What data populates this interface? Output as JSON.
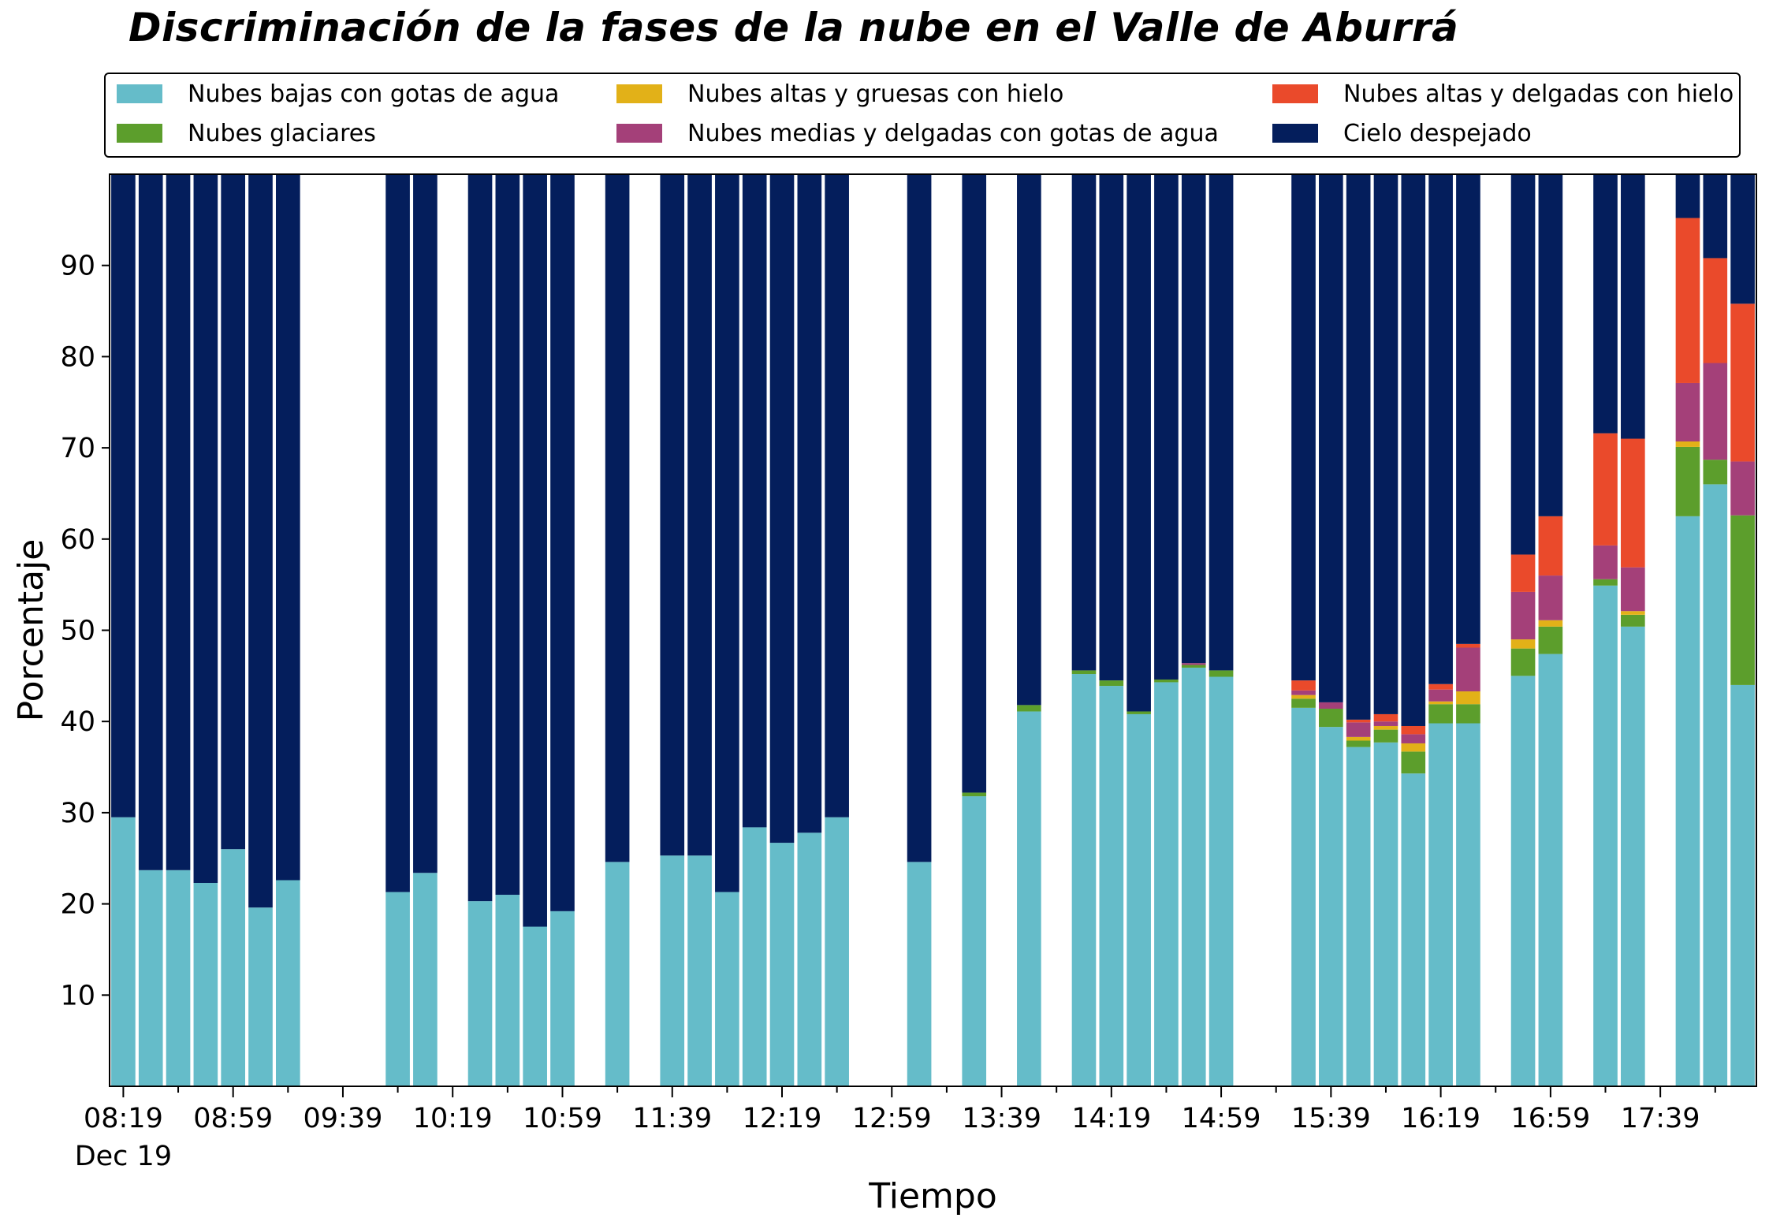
{
  "colors": {
    "low_water": "#65BCC9",
    "glacial": "#5C9E2C",
    "high_thick_ice": "#E2B118",
    "mid_thin_water": "#A44079",
    "high_thin_ice": "#EA4A2B",
    "clear_sky": "#041E5C"
  },
  "chart_data": {
    "type": "bar",
    "stacked": true,
    "title": "Discriminación de la fases de la nube en el Valle de Aburrá",
    "xlabel": "Tiempo",
    "ylabel": "Porcentaje",
    "ylim": [
      0,
      100
    ],
    "yticks": [
      10,
      20,
      30,
      40,
      50,
      60,
      70,
      80,
      90
    ],
    "x_interval_minutes": 10,
    "x_start": "08:19",
    "x_slots": 60,
    "xtick_labels": [
      "08:19",
      "08:59",
      "09:39",
      "10:19",
      "10:59",
      "11:39",
      "12:19",
      "12:59",
      "13:39",
      "14:19",
      "14:59",
      "15:39",
      "16:19",
      "16:59",
      "17:39"
    ],
    "xtick_date_label": "Dec 19",
    "grid": false,
    "legend_position": "top",
    "times": [
      "08:19",
      "08:29",
      "08:39",
      "08:49",
      "08:59",
      "09:09",
      "09:19",
      "09:59",
      "10:09",
      "10:29",
      "10:39",
      "10:49",
      "10:59",
      "11:19",
      "11:39",
      "11:49",
      "11:59",
      "12:09",
      "12:19",
      "12:29",
      "12:39",
      "13:09",
      "13:29",
      "13:49",
      "14:09",
      "14:19",
      "14:29",
      "14:39",
      "14:49",
      "14:59",
      "15:29",
      "15:39",
      "15:49",
      "15:59",
      "16:09",
      "16:19",
      "16:29",
      "16:49",
      "16:59",
      "17:19",
      "17:29",
      "17:49",
      "17:59",
      "18:09"
    ],
    "series": [
      {
        "name": "Nubes bajas con gotas de agua",
        "color_key": "low_water",
        "values": [
          29.5,
          23.7,
          23.7,
          22.3,
          26.0,
          19.6,
          22.6,
          21.3,
          23.4,
          20.3,
          21.0,
          17.5,
          19.2,
          24.6,
          25.3,
          25.3,
          21.3,
          28.4,
          26.7,
          27.8,
          29.5,
          24.6,
          31.8,
          41.1,
          45.2,
          43.9,
          40.8,
          44.3,
          45.9,
          44.9,
          41.5,
          39.4,
          37.2,
          37.7,
          34.3,
          39.8,
          39.8,
          45.0,
          47.4,
          54.9,
          50.4,
          62.5,
          66.0,
          44.0
        ]
      },
      {
        "name": "Nubes glaciares",
        "color_key": "glacial",
        "values": [
          0,
          0,
          0,
          0,
          0,
          0,
          0,
          0,
          0,
          0,
          0,
          0,
          0,
          0,
          0,
          0,
          0,
          0,
          0,
          0,
          0,
          0,
          0.4,
          0.7,
          0.4,
          0.6,
          0.3,
          0.3,
          0.3,
          0.7,
          1.0,
          2.0,
          0.7,
          1.4,
          2.4,
          2.1,
          2.1,
          3.0,
          3.0,
          0.7,
          1.3,
          7.6,
          2.7,
          18.6
        ]
      },
      {
        "name": "Nubes altas y gruesas con hielo",
        "color_key": "high_thick_ice",
        "values": [
          0,
          0,
          0,
          0,
          0,
          0,
          0,
          0,
          0,
          0,
          0,
          0,
          0,
          0,
          0,
          0,
          0,
          0,
          0,
          0,
          0,
          0,
          0,
          0,
          0,
          0,
          0,
          0,
          0,
          0,
          0.4,
          0,
          0.4,
          0.4,
          0.9,
          0.3,
          1.4,
          1.0,
          0.7,
          0,
          0.4,
          0.6,
          0,
          0
        ]
      },
      {
        "name": "Nubes medias y delgadas con gotas de agua",
        "color_key": "mid_thin_water",
        "values": [
          0,
          0,
          0,
          0,
          0,
          0,
          0,
          0,
          0,
          0,
          0,
          0,
          0,
          0,
          0,
          0,
          0,
          0,
          0,
          0,
          0,
          0,
          0,
          0,
          0,
          0,
          0,
          0,
          0.2,
          0,
          0.5,
          0.7,
          1.6,
          0.5,
          1.0,
          1.3,
          4.8,
          5.2,
          4.9,
          3.7,
          4.8,
          6.4,
          10.6,
          5.9
        ]
      },
      {
        "name": "Nubes altas y delgadas con hielo",
        "color_key": "high_thin_ice",
        "values": [
          0,
          0,
          0,
          0,
          0,
          0,
          0,
          0,
          0,
          0,
          0,
          0,
          0,
          0,
          0,
          0,
          0,
          0,
          0,
          0,
          0,
          0,
          0,
          0,
          0,
          0,
          0,
          0,
          0,
          0,
          1.1,
          0,
          0.3,
          0.8,
          0.9,
          0.6,
          0.4,
          4.1,
          6.5,
          12.3,
          14.1,
          18.1,
          11.5,
          17.3
        ]
      },
      {
        "name": "Cielo despejado",
        "color_key": "clear_sky",
        "values": [
          70.5,
          76.3,
          76.3,
          77.7,
          74.0,
          80.4,
          77.4,
          78.7,
          76.6,
          79.7,
          79.0,
          82.5,
          80.8,
          75.4,
          74.7,
          74.7,
          78.7,
          71.6,
          73.3,
          72.2,
          70.5,
          75.4,
          67.8,
          58.2,
          54.4,
          55.5,
          58.9,
          55.4,
          53.6,
          54.4,
          55.5,
          57.9,
          59.8,
          59.2,
          60.5,
          55.9,
          51.5,
          41.7,
          37.5,
          28.4,
          29.0,
          4.8,
          9.2,
          14.2
        ]
      }
    ]
  }
}
